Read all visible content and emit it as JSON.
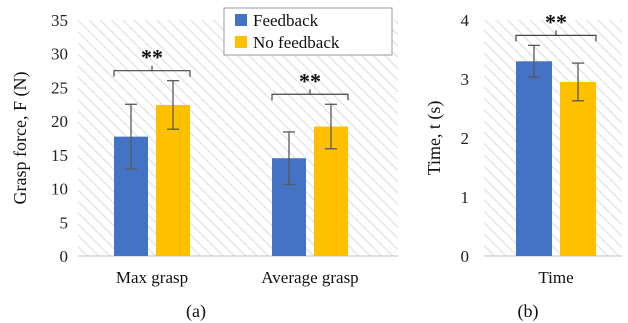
{
  "chart_data": [
    {
      "type": "bar",
      "panel_label": "(a)",
      "ylabel": "Grasp force, F (N)",
      "ylim": [
        0,
        35
      ],
      "yticks": [
        0,
        5,
        10,
        15,
        20,
        25,
        30,
        35
      ],
      "categories": [
        "Max grasp",
        "Average grasp"
      ],
      "series": [
        {
          "name": "Feedback",
          "color": "#4472C4",
          "values": [
            17.7,
            14.5
          ],
          "errors": [
            4.8,
            3.9
          ]
        },
        {
          "name": "No feedback",
          "color": "#FFC000",
          "values": [
            22.4,
            19.2
          ],
          "errors": [
            3.6,
            3.3
          ]
        }
      ],
      "significance": [
        "**",
        "**"
      ],
      "legend": "top-right",
      "background": "diagonal hatch"
    },
    {
      "type": "bar",
      "panel_label": "(b)",
      "ylabel": "Time, t (s)",
      "ylim": [
        0,
        4
      ],
      "yticks": [
        0,
        1,
        2,
        3,
        4
      ],
      "categories": [
        "Time"
      ],
      "series": [
        {
          "name": "Feedback",
          "color": "#4472C4",
          "values": [
            3.3
          ],
          "errors": [
            0.27
          ]
        },
        {
          "name": "No feedback",
          "color": "#FFC000",
          "values": [
            2.95
          ],
          "errors": [
            0.32
          ]
        }
      ],
      "significance": [
        "**"
      ],
      "background": "diagonal hatch"
    }
  ]
}
